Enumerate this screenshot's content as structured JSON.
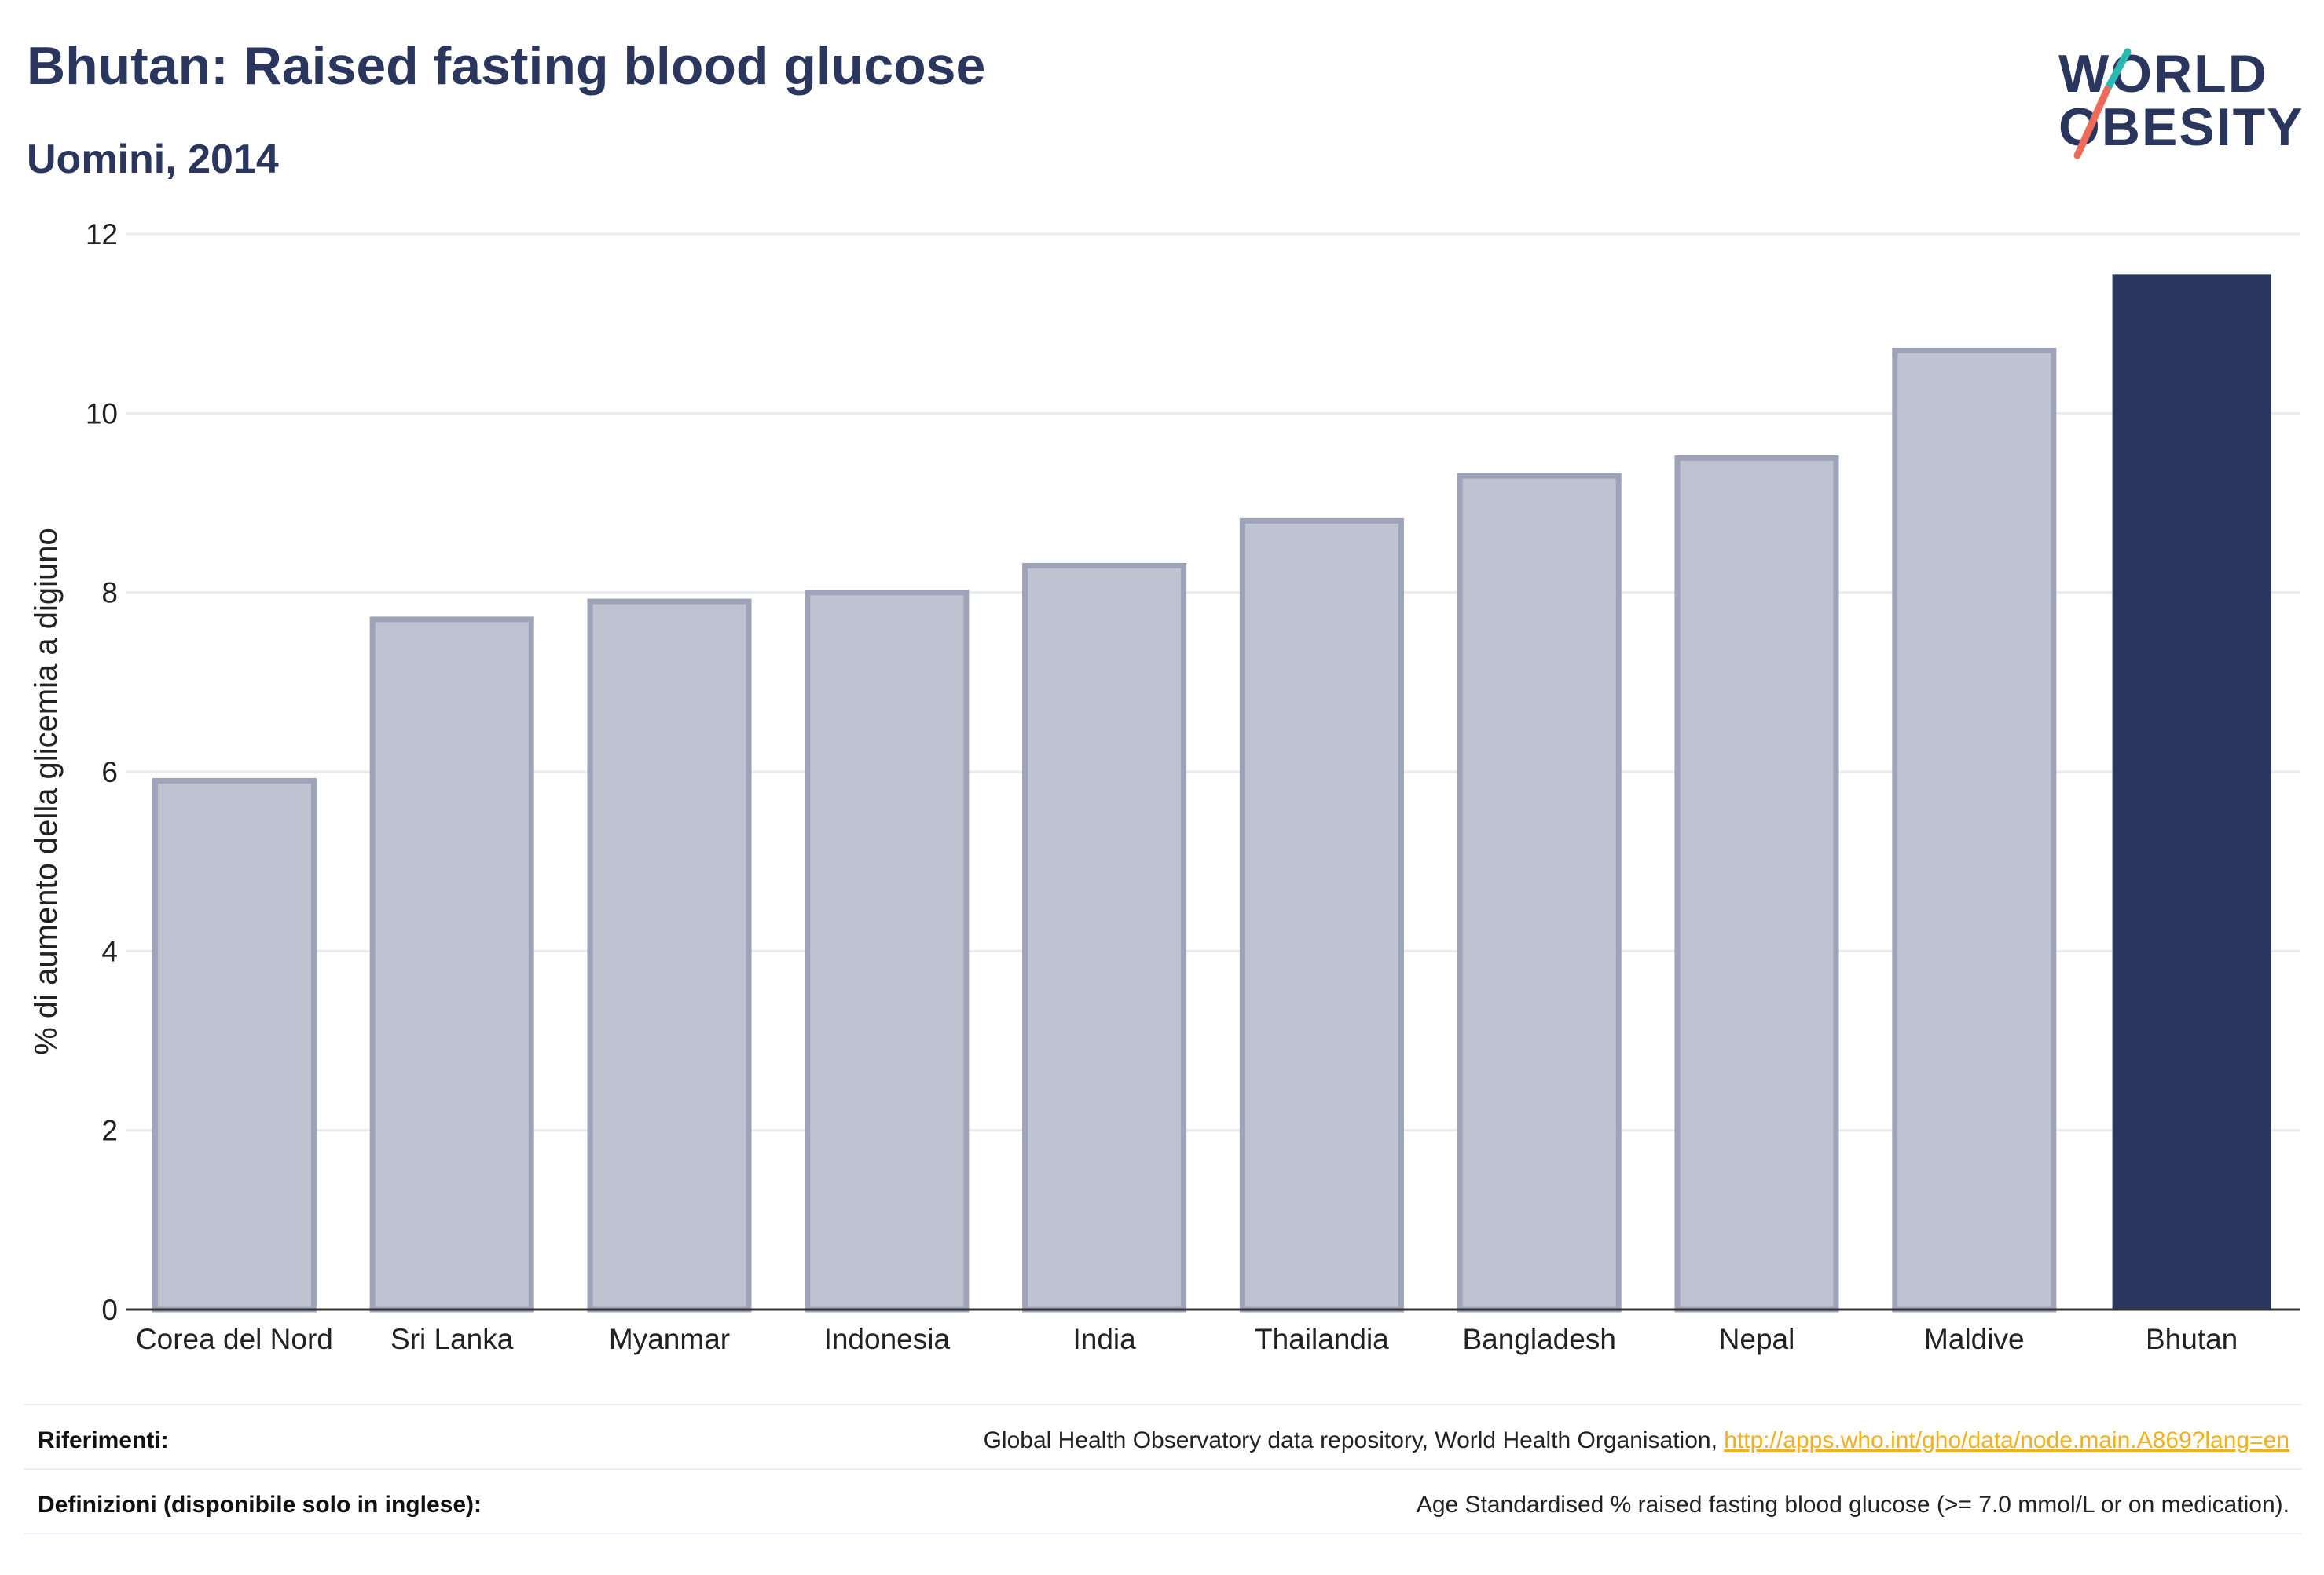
{
  "header": {
    "title": "Bhutan: Raised fasting blood glucose",
    "subtitle": "Uomini, 2014"
  },
  "logo": {
    "line1": "WORLD",
    "line2": "OBESITY",
    "icon": "world-obesity-slash-logo"
  },
  "colors": {
    "highlight_bar": "#2b365e",
    "other_bar_fill": "#bfc2d0",
    "other_bar_stroke": "#9ea3b9",
    "logo_teal": "#2ab9b2",
    "logo_coral": "#ee6b5a",
    "link": "#f2b01e"
  },
  "chart_data": {
    "type": "bar",
    "categories": [
      "Corea del Nord",
      "Sri Lanka",
      "Myanmar",
      "Indonesia",
      "India",
      "Thailandia",
      "Bangladesh",
      "Nepal",
      "Maldive",
      "Bhutan"
    ],
    "values": [
      5.9,
      7.7,
      7.9,
      8.0,
      8.3,
      8.8,
      9.3,
      9.5,
      10.7,
      11.55
    ],
    "highlight": "Bhutan",
    "xlabel": "",
    "ylabel": "% di aumento della glicemia a digiuno",
    "ylim": [
      0,
      12
    ],
    "yticks": [
      0,
      2,
      4,
      6,
      8,
      10,
      12
    ],
    "grid": true,
    "legend": "none"
  },
  "footer": {
    "references_label": "Riferimenti:",
    "references_text": "Global Health Observatory data repository, World Health Organisation, ",
    "references_link": "http://apps.who.int/gho/data/node.main.A869?lang=en",
    "definitions_label": "Definizioni (disponibile solo in inglese):",
    "definitions_text": "Age Standardised % raised fasting blood glucose (>= 7.0 mmol/L or on medication)."
  }
}
